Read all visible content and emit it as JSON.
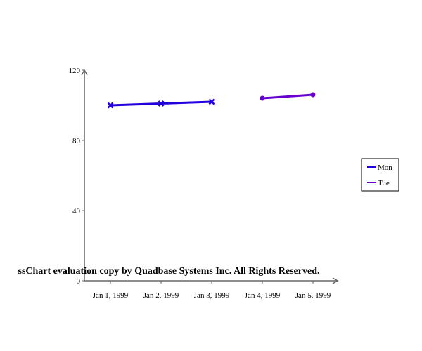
{
  "chart_data": {
    "type": "line",
    "categories": [
      "Jan 1, 1999",
      "Jan 2, 1999",
      "Jan 3, 1999",
      "Jan 4, 1999",
      "Jan 5, 1999"
    ],
    "series": [
      {
        "name": "Mon",
        "color": "#2200dd",
        "marker": "x",
        "values": [
          100,
          101,
          102,
          null,
          null
        ]
      },
      {
        "name": "Tue",
        "color": "#6600cc",
        "marker": "circle",
        "values": [
          null,
          null,
          null,
          104,
          106
        ]
      }
    ],
    "ylim": [
      0,
      120
    ],
    "yticks": [
      0,
      40,
      80,
      120
    ],
    "grid": false,
    "legend": "right",
    "title": "",
    "xlabel": "",
    "ylabel": ""
  },
  "watermark": "ssChart evaluation copy by Quadbase Systems Inc. All Rights Reserved."
}
